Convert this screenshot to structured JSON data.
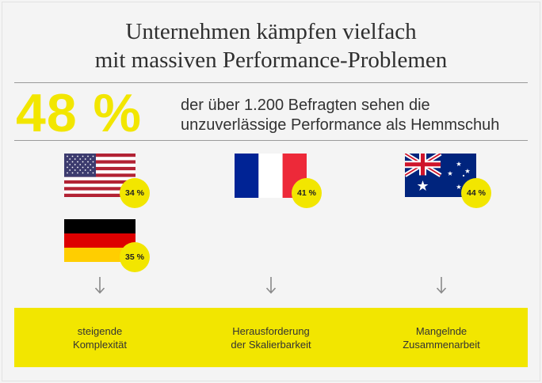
{
  "title": {
    "line1": "Unternehmen kämpfen vielfach",
    "line2": "mit massiven Performance-Problemen"
  },
  "headline_stat": {
    "value": "48 %",
    "text_line1": "der über 1.200 Befragten sehen die",
    "text_line2": "unzuverlässige Performance als Hemmschuh"
  },
  "countries": [
    {
      "flag": "us-flag-icon",
      "percent": "34 %"
    },
    {
      "flag": "fr-flag-icon",
      "percent": "41 %"
    },
    {
      "flag": "au-flag-icon",
      "percent": "44 %"
    },
    {
      "flag": "de-flag-icon",
      "percent": "35 %"
    }
  ],
  "challenges": [
    {
      "line1": "steigende",
      "line2": "Komplexität"
    },
    {
      "line1": "Herausforderung",
      "line2": "der Skalierbarkeit"
    },
    {
      "line1": "Mangelnde",
      "line2": "Zusammenarbeit"
    }
  ],
  "colors": {
    "accent_yellow": "#f2e600",
    "background": "#f4f4f4",
    "text": "#333333"
  }
}
